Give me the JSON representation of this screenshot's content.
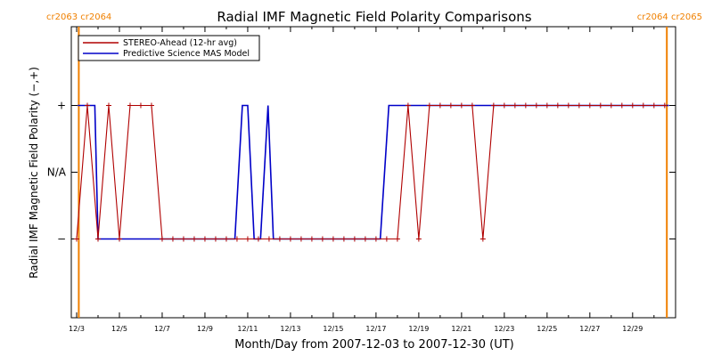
{
  "chart_data": {
    "type": "line",
    "title": "Radial IMF Magnetic Field Polarity Comparisons",
    "xlabel": "Month/Day from 2007-12-03 to 2007-12-30 (UT)",
    "ylabel": "Radial IMF Magnetic Field Polarity (−,+)",
    "xlim": [
      2007.1203,
      2007.1231
    ],
    "x_ticks": [
      "12/3",
      "12/5",
      "12/7",
      "12/9",
      "12/11",
      "12/13",
      "12/15",
      "12/17",
      "12/19",
      "12/21",
      "12/23",
      "12/25",
      "12/27",
      "12/29"
    ],
    "y_levels": [
      "−",
      "N/A",
      "+"
    ],
    "y_level_values": [
      -1,
      0,
      1
    ],
    "ylim": [
      -2,
      2
    ],
    "carrington_left": [
      "cr2063",
      "cr2064"
    ],
    "carrington_right": [
      "cr2064",
      "cr2065"
    ],
    "carrington_boundaries_day": [
      0.1,
      27.6
    ],
    "legend_position": "top-left",
    "colors": {
      "stereo": "#b00000",
      "mas": "#0000c8",
      "boundary": "#f08000",
      "axis": "#000000"
    },
    "series": [
      {
        "name": "STEREO-Ahead (12-hr avg)",
        "x_day": [
          0.0,
          0.5,
          1.0,
          1.5,
          2.0,
          2.5,
          3.0,
          3.5,
          4.0,
          4.5,
          5.0,
          5.5,
          6.0,
          6.5,
          7.0,
          7.5,
          8.0,
          8.5,
          9.0,
          9.5,
          10.0,
          10.5,
          11.0,
          11.5,
          12.0,
          12.5,
          13.0,
          13.5,
          14.0,
          14.5,
          15.0,
          15.5,
          16.0,
          16.5,
          17.0,
          17.5,
          18.0,
          18.5,
          19.0,
          19.5,
          20.0,
          20.5,
          21.0,
          21.5,
          22.0,
          22.5,
          23.0,
          23.5,
          24.0,
          24.5,
          25.0,
          25.5,
          26.0,
          26.5,
          27.0,
          27.5
        ],
        "values": [
          -1,
          1,
          -1,
          1,
          -1,
          1,
          1,
          1,
          -1,
          -1,
          -1,
          -1,
          -1,
          -1,
          -1,
          -1,
          -1,
          -1,
          -1,
          -1,
          -1,
          -1,
          -1,
          -1,
          -1,
          -1,
          -1,
          -1,
          -1,
          -1,
          -1,
          1,
          -1,
          1,
          1,
          1,
          1,
          1,
          -1,
          1,
          1,
          1,
          1,
          1,
          1,
          1,
          1,
          1,
          1,
          1,
          1,
          1,
          1,
          1,
          1,
          1
        ]
      },
      {
        "name": "Predictive Science MAS Model",
        "x_day": [
          0.05,
          0.85,
          1.0,
          7.4,
          7.75,
          8.0,
          8.3,
          8.6,
          8.95,
          9.2,
          9.5,
          14.2,
          14.6,
          27.7
        ],
        "values": [
          1,
          1,
          -1,
          -1,
          1,
          1,
          -1,
          -1,
          1,
          -1,
          -1,
          -1,
          1,
          1
        ]
      }
    ]
  }
}
